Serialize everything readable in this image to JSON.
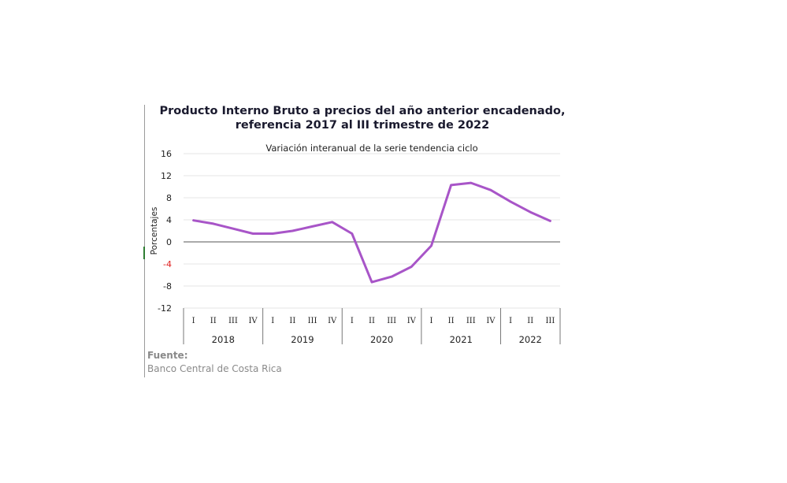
{
  "chart_data": {
    "type": "line",
    "title": "Producto Interno Bruto a precios del año anterior encadenado,",
    "title_line2": "referencia 2017 al III trimestre de 2022",
    "subtitle": "Variación interanual de la serie tendencia ciclo",
    "ylabel": "Porcentajes",
    "xlabel": "",
    "ylim": [
      -12,
      16
    ],
    "yticks": [
      "16",
      "12",
      "8",
      "4",
      "0",
      "-4",
      "-8",
      "-12"
    ],
    "grid": true,
    "x_quarters": [
      "I",
      "II",
      "III",
      "IV",
      "I",
      "II",
      "III",
      "IV",
      "I",
      "II",
      "III",
      "IV",
      "I",
      "II",
      "III",
      "IV",
      "I",
      "II",
      "III"
    ],
    "x_years": [
      {
        "label": "2018",
        "quarters": 4
      },
      {
        "label": "2019",
        "quarters": 4
      },
      {
        "label": "2020",
        "quarters": 4
      },
      {
        "label": "2021",
        "quarters": 4
      },
      {
        "label": "2022",
        "quarters": 3
      }
    ],
    "series": [
      {
        "color": "#a855c8",
        "values": [
          3.9,
          3.3,
          2.4,
          1.5,
          1.5,
          2.0,
          2.8,
          3.6,
          1.5,
          -7.3,
          -6.3,
          -4.5,
          -0.7,
          10.3,
          10.7,
          9.4,
          7.3,
          5.4,
          3.8
        ]
      }
    ],
    "colors": {
      "line": "#a855c8",
      "negative_tick": "#e02020",
      "grid": "#e6e6e6"
    }
  },
  "source": {
    "label": "Fuente:",
    "text": "Banco Central de Costa Rica"
  }
}
